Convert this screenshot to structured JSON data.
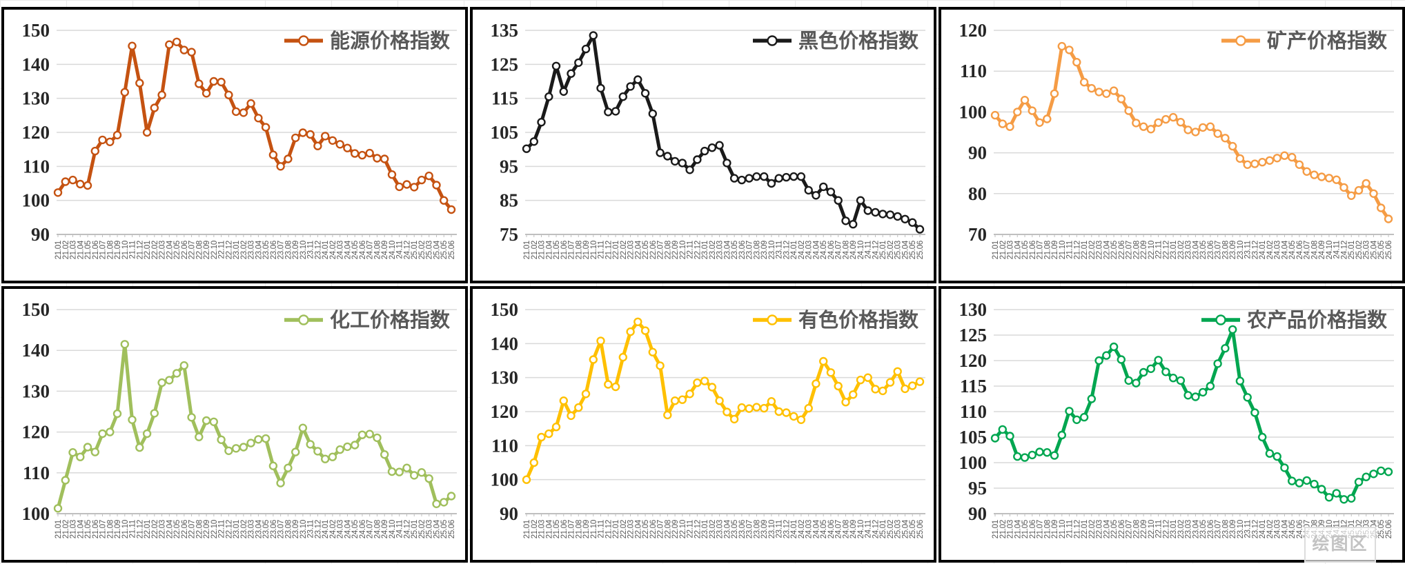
{
  "page": {
    "watermark_label": "绘图区",
    "background": "#FFFFFF",
    "grid_line_color": "#D9D9D9",
    "axis_color": "#BFBFBF",
    "x_tick_label_color": "#595959",
    "y_tick_label_color": "#262626",
    "legend_text_color": "#595959",
    "panel_border_color": "#000000",
    "marker_fill": "#FFFFFF"
  },
  "chart_data": {
    "type": "line",
    "layout": "2-rows-3-columns",
    "grid": "horizontal-major-gridlines",
    "legend_position": "top-right-inside",
    "categories": [
      "21.01",
      "21.02",
      "21.03",
      "21.04",
      "21.05",
      "21.06",
      "21.07",
      "21.08",
      "21.09",
      "21.10",
      "21.11",
      "21.12",
      "22.01",
      "22.02",
      "22.03",
      "22.04",
      "22.05",
      "22.06",
      "22.07",
      "22.08",
      "22.09",
      "22.10",
      "22.11",
      "22.12",
      "23.01",
      "23.02",
      "23.03",
      "23.04",
      "23.05",
      "23.06",
      "23.07",
      "23.08",
      "23.09",
      "23.10",
      "23.11",
      "23.12",
      "24.01",
      "24.02",
      "24.03",
      "24.04",
      "24.05",
      "24.06",
      "24.07",
      "24.08",
      "24.09",
      "24.10",
      "24.11",
      "24.12",
      "25.01",
      "25.02",
      "25.03",
      "25.04",
      "25.05",
      "25.06"
    ],
    "charts": [
      {
        "name": "energy-price-index",
        "legend": "能源价格指数",
        "color": "#C55211",
        "ylim": [
          90,
          150
        ],
        "yticks": [
          90,
          100,
          110,
          120,
          130,
          140,
          150
        ],
        "values": [
          102.3,
          105.5,
          106.0,
          104.8,
          104.4,
          114.5,
          117.8,
          117.2,
          119.2,
          131.8,
          145.4,
          134.5,
          120.0,
          127.2,
          131.0,
          145.8,
          146.6,
          144.2,
          143.6,
          134.3,
          131.5,
          135.0,
          134.8,
          131.0,
          126.1,
          125.8,
          128.5,
          124.2,
          121.5,
          113.4,
          110.0,
          112.2,
          118.4,
          119.9,
          119.4,
          116.0,
          118.9,
          117.6,
          116.5,
          115.4,
          113.8,
          113.3,
          113.9,
          112.4,
          112.2,
          107.6,
          104.0,
          104.7,
          103.9,
          106.0,
          107.2,
          104.5,
          100.0,
          97.3
        ]
      },
      {
        "name": "ferrous-price-index",
        "legend": "黑色价格指数",
        "color": "#1A1A1A",
        "ylim": [
          75,
          135
        ],
        "yticks": [
          75,
          85,
          95,
          105,
          115,
          125,
          135
        ],
        "values": [
          100.2,
          102.3,
          108.0,
          115.5,
          124.5,
          117.0,
          122.3,
          125.5,
          129.5,
          133.5,
          118.0,
          111.0,
          111.2,
          115.5,
          118.5,
          120.5,
          116.5,
          110.5,
          99.0,
          98.0,
          96.5,
          96.0,
          94.0,
          97.0,
          99.5,
          100.5,
          101.2,
          96.0,
          91.5,
          91.0,
          91.5,
          92.0,
          92.0,
          90.0,
          91.5,
          91.8,
          92.0,
          92.0,
          88.0,
          86.5,
          89.0,
          87.5,
          85.0,
          79.0,
          78.0,
          85.0,
          82.0,
          81.5,
          81.0,
          80.8,
          80.3,
          79.5,
          78.5,
          76.5
        ]
      },
      {
        "name": "mineral-price-index",
        "legend": "矿产价格指数",
        "color": "#F59C45",
        "ylim": [
          70,
          120
        ],
        "yticks": [
          70,
          80,
          90,
          100,
          110,
          120
        ],
        "values": [
          99.2,
          97.1,
          96.4,
          100.0,
          102.9,
          100.3,
          97.4,
          98.3,
          104.5,
          116.1,
          115.2,
          112.2,
          107.3,
          105.8,
          104.9,
          104.5,
          105.2,
          103.2,
          100.3,
          97.3,
          96.4,
          95.8,
          97.4,
          98.2,
          98.7,
          97.5,
          95.6,
          95.1,
          96.2,
          96.4,
          94.7,
          93.6,
          91.6,
          88.6,
          87.1,
          87.3,
          87.7,
          88.1,
          88.7,
          89.3,
          88.9,
          87.1,
          85.4,
          84.6,
          84.1,
          83.8,
          83.4,
          81.5,
          79.5,
          80.8,
          82.5,
          80.0,
          76.5,
          73.8
        ]
      },
      {
        "name": "chemical-price-index",
        "legend": "化工价格指数",
        "color": "#A0BF5C",
        "ylim": [
          100,
          150
        ],
        "yticks": [
          100,
          110,
          120,
          130,
          140,
          150
        ],
        "values": [
          101.3,
          108.2,
          115.0,
          113.9,
          116.3,
          115.1,
          119.6,
          120.0,
          124.5,
          141.5,
          123.0,
          116.2,
          119.6,
          124.6,
          132.1,
          132.7,
          134.4,
          136.3,
          123.6,
          118.8,
          122.8,
          122.5,
          118.1,
          115.4,
          116.0,
          116.3,
          117.3,
          118.2,
          118.4,
          111.7,
          107.5,
          111.2,
          115.1,
          121.0,
          117.0,
          115.3,
          113.4,
          113.9,
          115.7,
          116.4,
          116.8,
          119.3,
          119.5,
          118.6,
          114.5,
          110.3,
          110.2,
          111.2,
          109.4,
          110.1,
          108.6,
          102.4,
          102.8,
          104.3
        ]
      },
      {
        "name": "nonferrous-price-index",
        "legend": "有色价格指数",
        "color": "#FFC000",
        "ylim": [
          90,
          150
        ],
        "yticks": [
          90,
          100,
          110,
          120,
          130,
          140,
          150
        ],
        "values": [
          100.0,
          105.0,
          112.5,
          113.5,
          115.5,
          123.2,
          118.8,
          121.2,
          125.2,
          135.3,
          140.8,
          128.0,
          127.3,
          136.0,
          143.5,
          146.4,
          143.8,
          137.5,
          133.5,
          119.0,
          123.2,
          123.5,
          125.2,
          128.5,
          129.0,
          127.2,
          123.2,
          119.9,
          117.8,
          121.2,
          120.9,
          121.3,
          121.0,
          123.0,
          120.0,
          119.7,
          118.6,
          117.6,
          121.0,
          128.2,
          134.8,
          131.5,
          127.5,
          122.8,
          125.0,
          129.3,
          130.0,
          126.6,
          126.1,
          128.6,
          131.8,
          126.7,
          127.6,
          128.8
        ]
      },
      {
        "name": "agricultural-price-index",
        "legend": "农产品价格指数",
        "color": "#00A650",
        "ylim": [
          90,
          130
        ],
        "yticks": [
          90,
          95,
          100,
          105,
          110,
          115,
          120,
          125,
          130
        ],
        "values": [
          104.8,
          106.5,
          105.2,
          101.2,
          101.0,
          101.5,
          102.1,
          102.0,
          101.4,
          105.4,
          110.1,
          108.4,
          108.9,
          112.5,
          120.0,
          121.0,
          122.7,
          120.2,
          116.1,
          115.6,
          117.7,
          118.4,
          120.1,
          117.8,
          116.6,
          116.1,
          113.2,
          112.9,
          113.8,
          115.0,
          119.4,
          122.4,
          126.1,
          116.0,
          112.8,
          109.8,
          105.0,
          101.8,
          101.2,
          99.0,
          96.4,
          96.0,
          96.5,
          95.8,
          94.8,
          93.2,
          94.0,
          92.8,
          93.0,
          96.2,
          97.2,
          97.8,
          98.4,
          98.2
        ]
      }
    ]
  }
}
